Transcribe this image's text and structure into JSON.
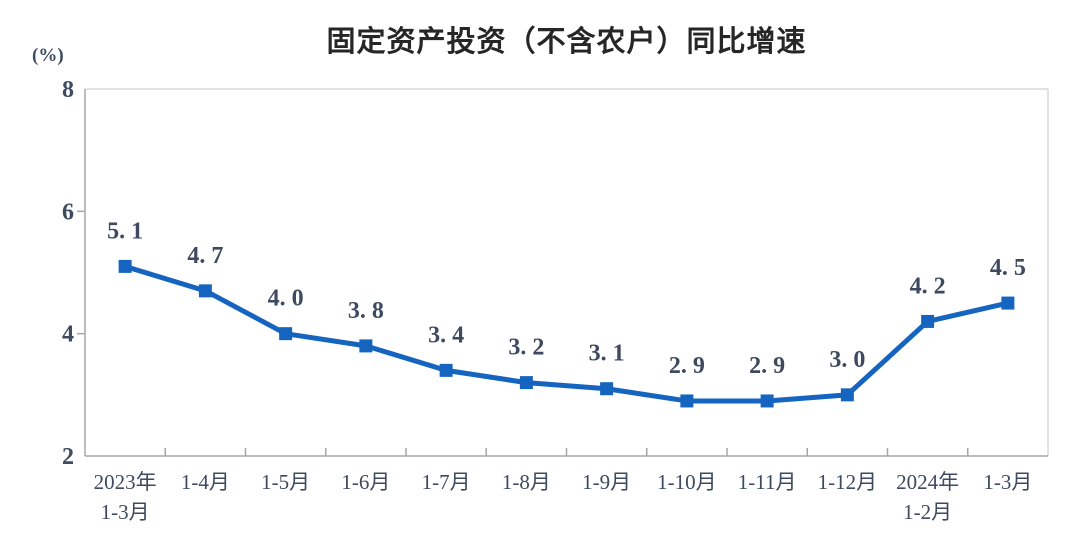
{
  "chart_data": {
    "type": "line",
    "title": "固定资产投资（不含农户）同比增速",
    "unit_label": "(%)",
    "xlabel": "",
    "ylabel": "(%)",
    "categories": [
      "2023年\n1-3月",
      "1-4月",
      "1-5月",
      "1-6月",
      "1-7月",
      "1-8月",
      "1-9月",
      "1-10月",
      "1-11月",
      "1-12月",
      "2024年\n1-2月",
      "1-3月"
    ],
    "values": [
      5.1,
      4.7,
      4.0,
      3.8,
      3.4,
      3.2,
      3.1,
      2.9,
      2.9,
      3.0,
      4.2,
      4.5
    ],
    "point_labels": [
      "5. 1",
      "4. 7",
      "4. 0",
      "3. 8",
      "3. 4",
      "3. 2",
      "3. 1",
      "2. 9",
      "2. 9",
      "3. 0",
      "4. 2",
      "4. 5"
    ],
    "ylim": [
      2,
      8
    ],
    "yticks": [
      8,
      6,
      4,
      2
    ],
    "grid": false,
    "legend_position": "none",
    "colors": {
      "line": "#1565C0",
      "marker": "#1565C0",
      "text": "#3D4A5F",
      "axis": "#A6A6A6",
      "border": "#D9D9D9",
      "title": "#262626"
    }
  }
}
